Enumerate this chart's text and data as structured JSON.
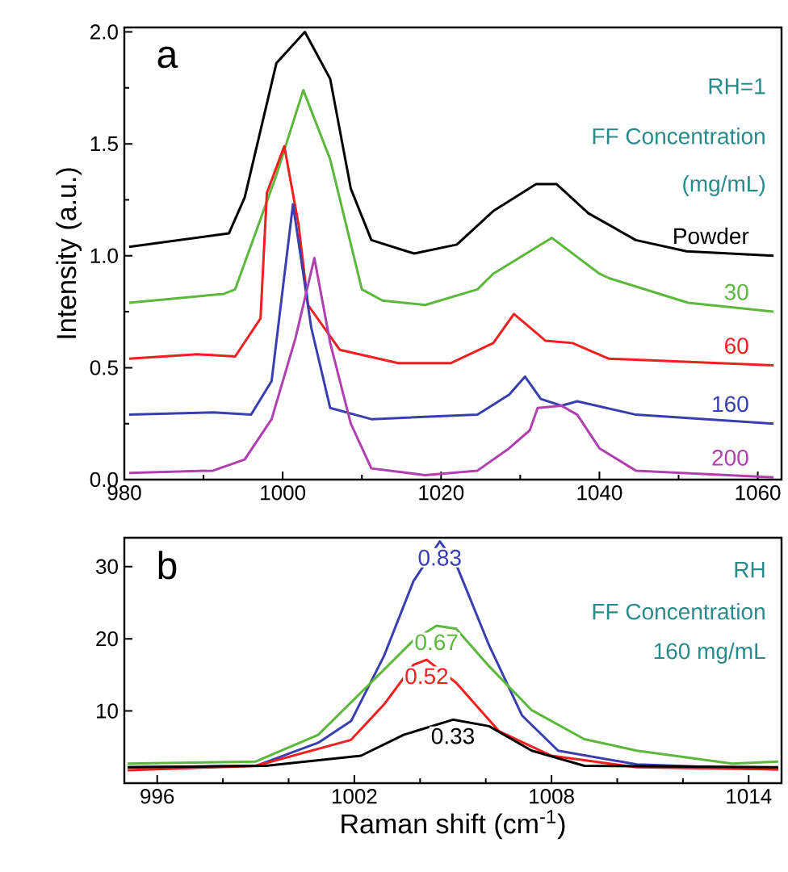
{
  "chart_data": [
    {
      "type": "line",
      "ylabel": "Intensity (a.u.)",
      "xlim": [
        980,
        1063
      ],
      "ylim": [
        0,
        2.02
      ],
      "xticks": [
        980,
        1000,
        1020,
        1040,
        1060
      ],
      "yticks": [
        {
          "value": 0,
          "label": "0.0"
        },
        {
          "value": 0.5,
          "label": "0.5"
        },
        {
          "value": 1,
          "label": "1.0"
        },
        {
          "value": 1.5,
          "label": "1.5"
        },
        {
          "value": 2,
          "label": "2.0"
        }
      ],
      "annotations": [
        "a",
        "RH=1",
        "FF Concentration",
        "(mg/mL)"
      ],
      "series": [
        {
          "name": "Powder",
          "color": "#000000",
          "x": [
            980.6,
            993.2,
            995.2,
            999.2,
            1002.8,
            1006,
            1008.6,
            1011.2,
            1016.6,
            1022,
            1026.6,
            1032,
            1034.6,
            1038.6,
            1044.6,
            1051,
            1062
          ],
          "values": [
            1.04,
            1.1,
            1.26,
            1.86,
            2.0,
            1.79,
            1.3,
            1.07,
            1.01,
            1.05,
            1.2,
            1.32,
            1.32,
            1.19,
            1.07,
            1.02,
            1.0
          ]
        },
        {
          "name": "30",
          "color": "#5cb83c",
          "x": [
            980.6,
            992.6,
            994,
            999.2,
            1002.6,
            1006,
            1010,
            1012.6,
            1018,
            1024.6,
            1026.6,
            1034,
            1040,
            1041.2,
            1051.2,
            1062
          ],
          "values": [
            0.79,
            0.83,
            0.85,
            1.36,
            1.74,
            1.43,
            0.85,
            0.8,
            0.78,
            0.85,
            0.92,
            1.08,
            0.92,
            0.9,
            0.79,
            0.75
          ]
        },
        {
          "name": "60",
          "color": "#ee2020",
          "x": [
            980.6,
            989.2,
            994,
            997.2,
            998,
            1000.2,
            1002,
            1003.2,
            1007.2,
            1014.6,
            1021.2,
            1026.6,
            1029.2,
            1031.2,
            1033.2,
            1036.6,
            1041.2,
            1062
          ],
          "values": [
            0.54,
            0.56,
            0.55,
            0.72,
            1.28,
            1.49,
            1.14,
            0.78,
            0.58,
            0.52,
            0.52,
            0.61,
            0.74,
            0.68,
            0.62,
            0.61,
            0.54,
            0.51
          ]
        },
        {
          "name": "160",
          "color": "#3a3fb0",
          "x": [
            980.6,
            991.2,
            996,
            998.6,
            1001.3,
            1003.6,
            1006,
            1011.2,
            1024.6,
            1028.6,
            1030.6,
            1032.6,
            1035.2,
            1037.2,
            1044.6,
            1062
          ],
          "values": [
            0.29,
            0.3,
            0.29,
            0.44,
            1.23,
            0.68,
            0.32,
            0.27,
            0.29,
            0.38,
            0.46,
            0.36,
            0.33,
            0.35,
            0.29,
            0.25
          ]
        },
        {
          "name": "200",
          "color": "#b040b0",
          "x": [
            980.6,
            991.2,
            995.2,
            998.6,
            1001.6,
            1004,
            1006,
            1008.6,
            1011.2,
            1018,
            1024.6,
            1028.6,
            1031.2,
            1032.2,
            1035.2,
            1037.2,
            1040,
            1044.6,
            1062
          ],
          "values": [
            0.03,
            0.04,
            0.09,
            0.27,
            0.63,
            0.99,
            0.61,
            0.25,
            0.05,
            0.02,
            0.04,
            0.14,
            0.22,
            0.32,
            0.33,
            0.29,
            0.14,
            0.04,
            0.01
          ]
        }
      ]
    },
    {
      "type": "line",
      "xlabel": "Raman shift (cm$^{-1}$)",
      "xlim": [
        995,
        1015
      ],
      "ylim": [
        0,
        34
      ],
      "xticks": [
        996,
        1002,
        1008,
        1014
      ],
      "yticks": [
        10,
        20,
        30
      ],
      "annotations": [
        "b",
        "RH",
        "FF Concentration",
        "160 mg/mL"
      ],
      "series": [
        {
          "name": "0.83",
          "color": "#3a3fb0",
          "x": [
            995.1,
            999,
            1000.9,
            1001.9,
            1002.9,
            1003.8,
            1004.6,
            1005.1,
            1006.1,
            1007.1,
            1008.2,
            1010.6,
            1014.9
          ],
          "values": [
            2.2,
            2.4,
            5.6,
            8.6,
            17.6,
            28,
            33.5,
            30.3,
            19.1,
            9.4,
            4.5,
            2.6,
            1.9
          ]
        },
        {
          "name": "0.67",
          "color": "#5cb83c",
          "x": [
            995.1,
            999,
            1000.9,
            1002.5,
            1003.8,
            1004.5,
            1005.1,
            1006.1,
            1007.4,
            1009,
            1010.6,
            1013.5,
            1014.9
          ],
          "values": [
            2.7,
            3.0,
            6.7,
            13.9,
            19.8,
            21.8,
            21.4,
            16.2,
            10.1,
            6.1,
            4.5,
            2.7,
            3.0
          ]
        },
        {
          "name": "0.52",
          "color": "#ee2020",
          "x": [
            995.1,
            999,
            1001.9,
            1002.9,
            1003.8,
            1004.2,
            1005.1,
            1006.4,
            1008,
            1010.6,
            1014.9
          ],
          "values": [
            1.8,
            2.4,
            6.0,
            10.9,
            16.4,
            17.1,
            13.9,
            7.2,
            3.8,
            2.2,
            1.9
          ]
        },
        {
          "name": "0.33",
          "color": "#000000",
          "x": [
            995.1,
            999.3,
            1002.2,
            1003.5,
            1005,
            1006.1,
            1007.4,
            1009,
            1014.9
          ],
          "values": [
            2.2,
            2.4,
            3.8,
            6.7,
            8.8,
            7.9,
            4.5,
            2.4,
            2.2
          ]
        }
      ]
    }
  ]
}
